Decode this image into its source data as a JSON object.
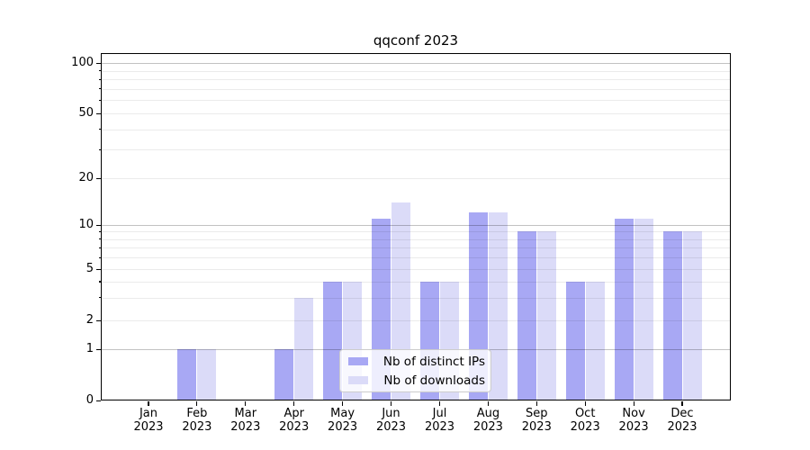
{
  "title": "qqconf 2023",
  "legend": {
    "items": [
      {
        "label": "Nb of distinct IPs",
        "color": "#a8a8f4"
      },
      {
        "label": "Nb of downloads",
        "color": "#dbdbf8"
      }
    ]
  },
  "chart_data": {
    "type": "bar",
    "title": "qqconf 2023",
    "categories": [
      "Jan 2023",
      "Feb 2023",
      "Mar 2023",
      "Apr 2023",
      "May 2023",
      "Jun 2023",
      "Jul 2023",
      "Aug 2023",
      "Sep 2023",
      "Oct 2023",
      "Nov 2023",
      "Dec 2023"
    ],
    "months": [
      "Jan",
      "Feb",
      "Mar",
      "Apr",
      "May",
      "Jun",
      "Jul",
      "Aug",
      "Sep",
      "Oct",
      "Nov",
      "Dec"
    ],
    "year": "2023",
    "series": [
      {
        "name": "Nb of distinct IPs",
        "color": "#a8a8f4",
        "values": [
          0,
          1,
          0,
          1,
          4,
          11,
          4,
          12,
          9,
          4,
          11,
          9
        ]
      },
      {
        "name": "Nb of downloads",
        "color": "#dbdbf8",
        "values": [
          0,
          1,
          0,
          3,
          4,
          14,
          4,
          12,
          9,
          4,
          11,
          9
        ]
      }
    ],
    "xlabel": "",
    "ylabel": "",
    "y_axis": {
      "scale": "symlog",
      "range": [
        0,
        100
      ],
      "labeled_ticks": [
        0,
        1,
        2,
        5,
        10,
        20,
        50,
        100
      ],
      "major_gridlines": [
        1,
        10,
        100
      ],
      "minor_gridlines": [
        2,
        3,
        4,
        5,
        6,
        7,
        8,
        9,
        20,
        30,
        40,
        50,
        60,
        70,
        80,
        90
      ]
    },
    "grid": true,
    "legend_position": "lower center"
  }
}
